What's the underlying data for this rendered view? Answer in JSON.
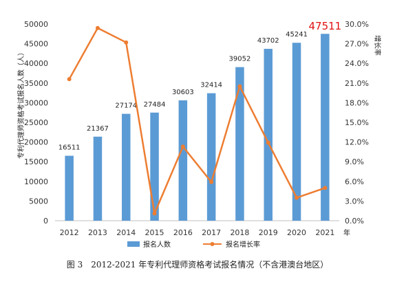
{
  "chart_data": {
    "type": "bar",
    "categories": [
      "2012",
      "2013",
      "2014",
      "2015",
      "2016",
      "2017",
      "2018",
      "2019",
      "2020",
      "2021"
    ],
    "series": [
      {
        "name": "报名人数",
        "kind": "bar",
        "axis": "left",
        "values": [
          16511,
          21367,
          27174,
          27484,
          30603,
          32414,
          39052,
          43702,
          45241,
          47511
        ],
        "labels": [
          "16511",
          "21367",
          "27174",
          "27484",
          "30603",
          "32414",
          "39052",
          "43702",
          "45241",
          "47511"
        ]
      },
      {
        "name": "报名增长率",
        "kind": "line",
        "axis": "right",
        "values": [
          21.6,
          29.4,
          27.2,
          1.1,
          11.3,
          5.9,
          20.5,
          11.9,
          3.5,
          5.0
        ]
      }
    ],
    "xlabel": "年",
    "ylabel": "专利代理师资格考试报名人数（人）",
    "y2label": "增长率",
    "ylim": [
      0,
      50000
    ],
    "yticks": [
      "0",
      "5000",
      "10000",
      "15000",
      "20000",
      "25000",
      "30000",
      "35000",
      "40000",
      "45000",
      "50000"
    ],
    "y2lim": [
      0,
      30
    ],
    "y2ticks": [
      "0.0%",
      "3.0%",
      "6.0%",
      "9.0%",
      "12.0%",
      "15.0%",
      "18.0%",
      "21.0%",
      "24.0%",
      "27.0%",
      "30.0%"
    ],
    "highlight_label": "47511",
    "legend_position": "bottom",
    "grid": false,
    "colors": {
      "bar": "#5b9bd5",
      "line": "#ed7d31",
      "highlight": "#e01010"
    }
  },
  "caption": "图 3　2012-2021 年专利代理师资格考试报名情况（不含港澳台地区）"
}
